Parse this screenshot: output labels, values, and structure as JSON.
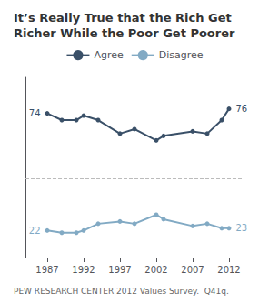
{
  "chart_data": {
    "type": "line",
    "title": "It’s Really True that the Rich Get\nRicher While the Poor Get Poorer",
    "footer": "PEW RESEARCH CENTER 2012 Values Survey.  Q41q.",
    "x": [
      1987,
      1989,
      1991,
      1992,
      1994,
      1997,
      1999,
      2002,
      2003,
      2007,
      2009,
      2011,
      2012
    ],
    "series": [
      {
        "name": "Agree",
        "color": "#3a5068",
        "marker": "circle",
        "values": [
          74,
          71,
          71,
          73,
          71,
          65,
          67,
          62,
          64,
          66,
          65,
          71,
          76
        ]
      },
      {
        "name": "Disagree",
        "color": "#82aac4",
        "marker": "circle",
        "values": [
          22,
          21,
          21,
          22,
          25,
          26,
          25,
          29,
          27,
          24,
          25,
          23,
          23
        ]
      }
    ],
    "xlim": [
      1984,
      2014
    ],
    "xticks": [
      1987,
      1992,
      1997,
      2002,
      2007,
      2012
    ],
    "ylim": [
      10,
      90
    ],
    "tick_labels": "x",
    "grid": false,
    "legend": "top",
    "hline": 45,
    "annotations": [
      {
        "text": "74",
        "series": "Agree",
        "x": 1987
      },
      {
        "text": "76",
        "series": "Agree",
        "x": 2012
      },
      {
        "text": "22",
        "series": "Disagree",
        "x": 1987
      },
      {
        "text": "23",
        "series": "Disagree",
        "x": 2012
      }
    ]
  }
}
